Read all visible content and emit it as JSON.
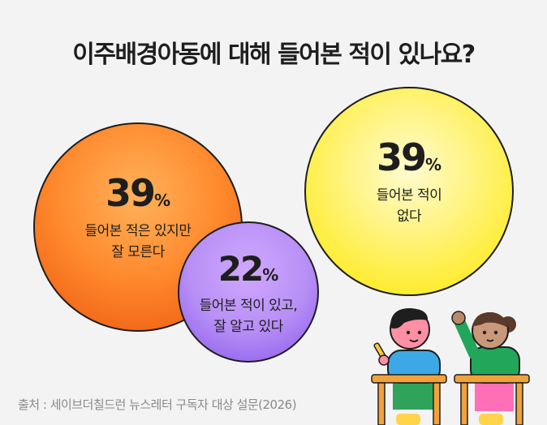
{
  "title": "이주배경아동에 대해 들어본 적이 있나요?",
  "source": "출처 : 세이브더칠드런 뉴스레터 구독자 대상 설문(2026)",
  "colors": {
    "background": "#f3f3f3",
    "orange": "#ff8a2e",
    "purple": "#b88ff5",
    "yellow": "#ffee3a"
  },
  "chart_data": {
    "type": "bubble",
    "unit": "%",
    "slices": [
      {
        "label_lines": [
          "들어본 적은 있지만",
          "잘 모른다"
        ],
        "value": 39,
        "color": "#ff8a2e"
      },
      {
        "label_lines": [
          "들어본 적이 있고,",
          "잘 알고 있다"
        ],
        "value": 22,
        "color": "#b88ff5"
      },
      {
        "label_lines": [
          "들어본 적이",
          "없다"
        ],
        "value": 39,
        "color": "#ffee3a"
      }
    ]
  }
}
